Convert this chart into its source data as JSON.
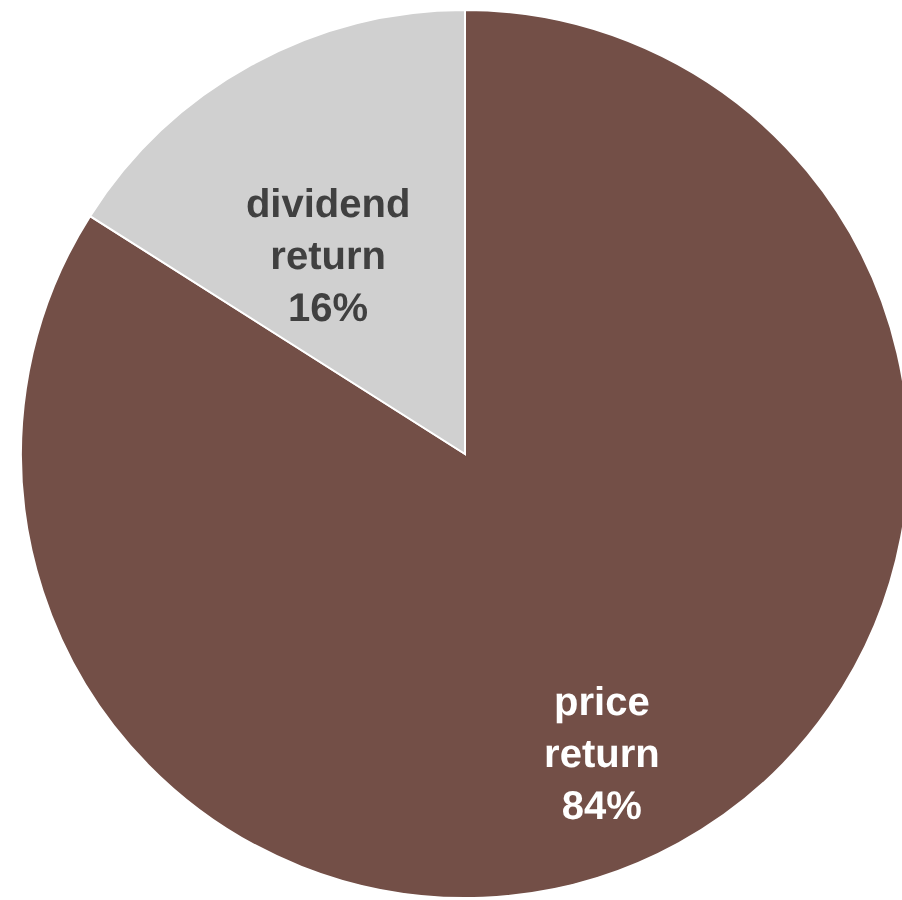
{
  "chart_data": {
    "type": "pie",
    "categories": [
      "price return",
      "dividend return"
    ],
    "values": [
      84,
      16
    ],
    "colors": [
      "#734f47",
      "#d0d0d0"
    ],
    "value_labels": [
      "84%",
      "16%"
    ]
  }
}
